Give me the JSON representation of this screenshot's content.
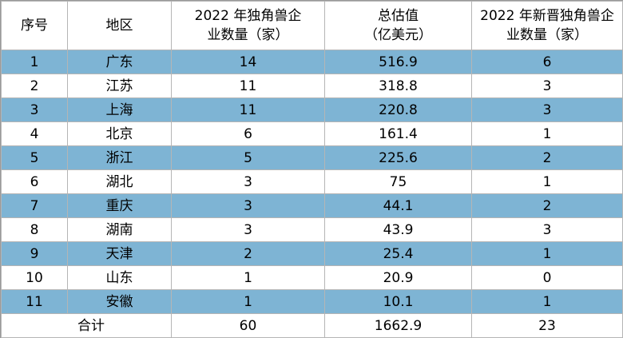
{
  "table": {
    "headers": {
      "index": "序号",
      "region": "地区",
      "count_2022_line1": "2022 年独角兽企",
      "count_2022_line2": "业数量（家）",
      "valuation_line1": "总估值",
      "valuation_line2": "（亿美元）",
      "new_2022_line1": "2022 年新晋独角兽企",
      "new_2022_line2": "业数量（家）"
    },
    "rows": [
      {
        "index": "1",
        "region": "广东",
        "count": "14",
        "valuation": "516.9",
        "new": "6",
        "shade": "blue"
      },
      {
        "index": "2",
        "region": "江苏",
        "count": "11",
        "valuation": "318.8",
        "new": "3",
        "shade": "white"
      },
      {
        "index": "3",
        "region": "上海",
        "count": "11",
        "valuation": "220.8",
        "new": "3",
        "shade": "blue"
      },
      {
        "index": "4",
        "region": "北京",
        "count": "6",
        "valuation": "161.4",
        "new": "1",
        "shade": "white"
      },
      {
        "index": "5",
        "region": "浙江",
        "count": "5",
        "valuation": "225.6",
        "new": "2",
        "shade": "blue"
      },
      {
        "index": "6",
        "region": "湖北",
        "count": "3",
        "valuation": "75",
        "new": "1",
        "shade": "white"
      },
      {
        "index": "7",
        "region": "重庆",
        "count": "3",
        "valuation": "44.1",
        "new": "2",
        "shade": "blue"
      },
      {
        "index": "8",
        "region": "湖南",
        "count": "3",
        "valuation": "43.9",
        "new": "3",
        "shade": "white"
      },
      {
        "index": "9",
        "region": "天津",
        "count": "2",
        "valuation": "25.4",
        "new": "1",
        "shade": "blue"
      },
      {
        "index": "10",
        "region": "山东",
        "count": "1",
        "valuation": "20.9",
        "new": "0",
        "shade": "white"
      },
      {
        "index": "11",
        "region": "安徽",
        "count": "1",
        "valuation": "10.1",
        "new": "1",
        "shade": "blue"
      }
    ],
    "total": {
      "label": "合计",
      "count": "60",
      "valuation": "1662.9",
      "new": "23"
    }
  },
  "colors": {
    "row_highlight": "#7eb4d4",
    "row_plain": "#ffffff",
    "border": "#b5b5b5"
  }
}
